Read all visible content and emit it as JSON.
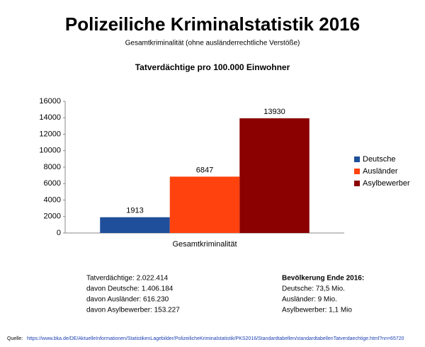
{
  "chart_data": {
    "type": "bar",
    "title": "Polizeiliche Kriminalstatistik 2016",
    "subtitle": "Gesamtkriminalität (ohne ausländerrechtliche Verstöße)",
    "chart_title": "Tatverdächtige pro 100.000  Einwohner",
    "categories": [
      "Gesamtkriminalität"
    ],
    "series": [
      {
        "name": "Deutsche",
        "color": "#1f4e9a",
        "values": [
          1913
        ]
      },
      {
        "name": "Ausländer",
        "color": "#ff420e",
        "values": [
          6847
        ]
      },
      {
        "name": "Asylbewerber",
        "color": "#8b0000",
        "values": [
          13930
        ]
      }
    ],
    "ylim": [
      0,
      16000
    ],
    "yticks": [
      0,
      2000,
      4000,
      6000,
      8000,
      10000,
      12000,
      14000,
      16000
    ],
    "grid": false,
    "legend": "right"
  },
  "notes": {
    "left": [
      "Tatverdächtige: 2.022.414",
      "davon Deutsche: 1.406.184",
      "davon Ausländer: 616.230",
      "davon Asylbewerber: 153.227"
    ],
    "right_title": "Bevölkerung Ende 2016:",
    "right": [
      "Deutsche: 73,5 Mio.",
      "Ausländer: 9 Mio.",
      "Asylbewerber: 1,1 Mio"
    ]
  },
  "source": {
    "label": "Quelle:",
    "url": "https://www.bka.de/DE/AktuelleInformationen/StatistikenLagebilder/PolizeilicheKriminalstatistik/PKS2016/Standardtabellen/standardtabellenTatverdaechtige.html?nn=65720"
  }
}
